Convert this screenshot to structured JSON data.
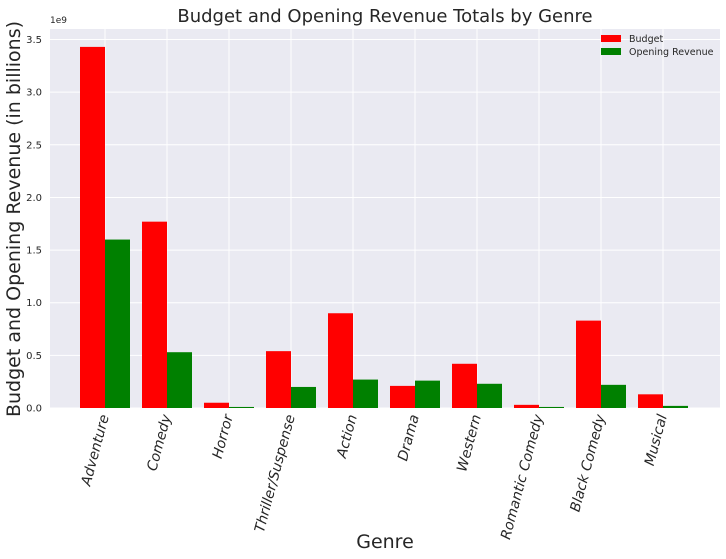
{
  "chart_data": {
    "type": "bar",
    "title": "Budget and Opening Revenue Totals by Genre",
    "xlabel": "Genre",
    "ylabel": "Budget and Opening Revenue (in billions)",
    "y_offset_label": "1e9",
    "ylim": [
      0,
      3.6
    ],
    "yticks": [
      0.0,
      0.5,
      1.0,
      1.5,
      2.0,
      2.5,
      3.0,
      3.5
    ],
    "ytick_labels": [
      "0.0",
      "0.5",
      "1.0",
      "1.5",
      "2.0",
      "2.5",
      "3.0",
      "3.5"
    ],
    "grid": true,
    "legend_position": "top-right",
    "categories": [
      "Adventure",
      "Comedy",
      "Horror",
      "Thriller/Suspense",
      "Action",
      "Drama",
      "Western",
      "Romantic Comedy",
      "Black Comedy",
      "Musical"
    ],
    "series": [
      {
        "name": "Budget",
        "color": "#ff0000",
        "values": [
          3.43,
          1.77,
          0.05,
          0.54,
          0.9,
          0.21,
          0.42,
          0.03,
          0.83,
          0.13
        ]
      },
      {
        "name": "Opening Revenue",
        "color": "#008000",
        "values": [
          1.6,
          0.53,
          0.01,
          0.2,
          0.27,
          0.26,
          0.23,
          0.01,
          0.22,
          0.02
        ]
      }
    ]
  },
  "style": {
    "plot_background": "#eaeaf2",
    "grid_color": "#ffffff"
  }
}
